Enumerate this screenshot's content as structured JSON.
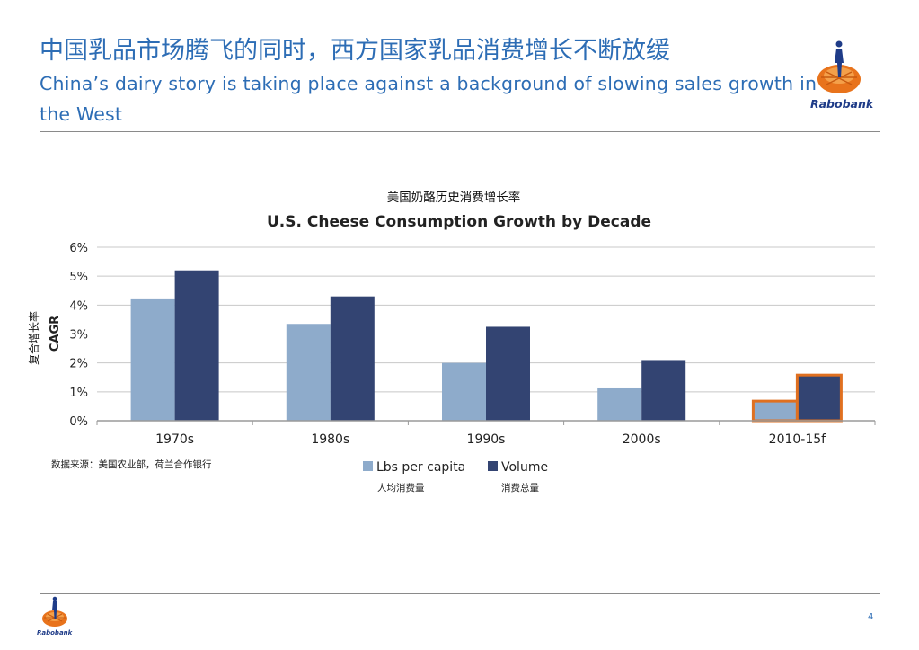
{
  "header": {
    "title_zh": "中国乳品市场腾飞的同时，西方国家乳品消费增长不断放缓",
    "title_en": "China’s dairy story is taking place against a background of slowing sales growth in the West"
  },
  "brand": {
    "logo_text": "Rabobank"
  },
  "footer": {
    "source_note": "数据来源：美国农业部，荷兰合作银行",
    "page_number": "4"
  },
  "colors": {
    "title": "#2d6db5",
    "lbs_per_capita": "#8eabcb",
    "volume": "#334472",
    "highlight": "#e07020",
    "grid": "#c8c8c8"
  },
  "chart_data": {
    "type": "bar",
    "title_zh": "美国奶酪历史消费增长率",
    "title": "U.S. Cheese Consumption Growth by Decade",
    "ylabel": "CAGR",
    "ylabel_zh": "复合增长率",
    "xlabel": "",
    "ylim": [
      0,
      0.06
    ],
    "yticks": [
      {
        "value": 0,
        "label": "0%"
      },
      {
        "value": 0.01,
        "label": "1%"
      },
      {
        "value": 0.02,
        "label": "2%"
      },
      {
        "value": 0.03,
        "label": "3%"
      },
      {
        "value": 0.04,
        "label": "4%"
      },
      {
        "value": 0.05,
        "label": "5%"
      },
      {
        "value": 0.06,
        "label": "6%"
      }
    ],
    "categories": [
      "1970s",
      "1980s",
      "1990s",
      "2000s",
      "2010-15f"
    ],
    "series": [
      {
        "name": "Lbs per capita",
        "name_zh": "人均消费量",
        "values": [
          0.042,
          0.0335,
          0.02,
          0.0112,
          0.0068
        ]
      },
      {
        "name": "Volume",
        "name_zh": "消费总量",
        "values": [
          0.052,
          0.043,
          0.0325,
          0.021,
          0.0158
        ]
      }
    ],
    "highlighted_category": "2010-15f",
    "grid": true,
    "legend_position": "bottom"
  }
}
